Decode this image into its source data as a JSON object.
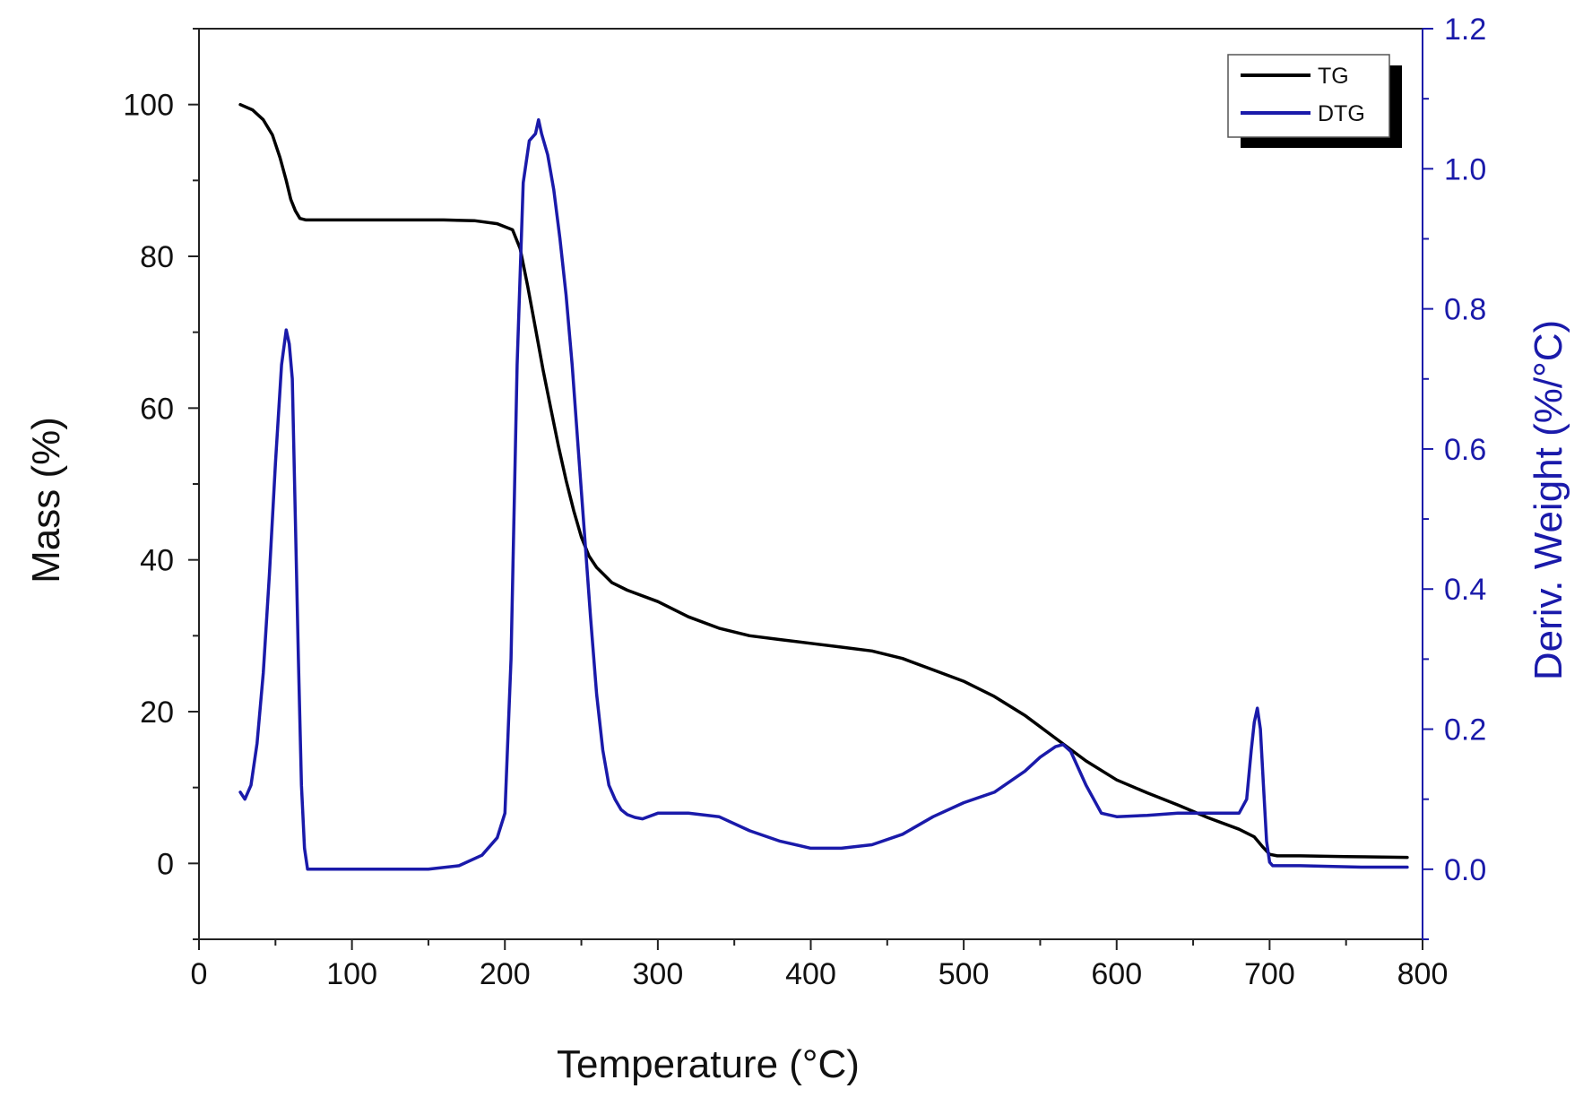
{
  "chart_data": {
    "type": "line",
    "title": "",
    "xlabel": "Temperature (°C)",
    "ylabel": "Mass (%)",
    "y2label": "Deriv. Weight (%/°C)",
    "xlim": [
      0,
      800
    ],
    "ylim": [
      -10,
      110
    ],
    "y2lim": [
      -0.1,
      1.2
    ],
    "x_ticks": [
      0,
      100,
      200,
      300,
      400,
      500,
      600,
      700,
      800
    ],
    "y_ticks": [
      0,
      20,
      40,
      60,
      80,
      100
    ],
    "y2_ticks": [
      0.0,
      0.2,
      0.4,
      0.6,
      0.8,
      1.0,
      1.2
    ],
    "x_tick_labels": [
      "0",
      "100",
      "200",
      "300",
      "400",
      "500",
      "600",
      "700",
      "800"
    ],
    "y_tick_labels": [
      "0",
      "20",
      "40",
      "60",
      "80",
      "100"
    ],
    "y2_tick_labels": [
      "0.0",
      "0.2",
      "0.4",
      "0.6",
      "0.8",
      "1.0",
      "1.2"
    ],
    "grid": false,
    "legend_position": "top-right",
    "legend": [
      "TG",
      "DTG"
    ],
    "series": [
      {
        "name": "TG",
        "axis": "left",
        "color": "#000000",
        "x": [
          27,
          35,
          42,
          48,
          53,
          57,
          60,
          63,
          66,
          70,
          80,
          100,
          120,
          140,
          160,
          180,
          195,
          205,
          210,
          215,
          220,
          225,
          230,
          235,
          240,
          245,
          250,
          255,
          260,
          265,
          270,
          280,
          300,
          320,
          340,
          360,
          380,
          400,
          420,
          440,
          460,
          480,
          500,
          520,
          540,
          560,
          580,
          600,
          620,
          640,
          660,
          680,
          690,
          695,
          700,
          705,
          720,
          750,
          790
        ],
        "values": [
          100,
          99.3,
          98,
          96,
          93,
          90,
          87.5,
          86,
          85,
          84.8,
          84.8,
          84.8,
          84.8,
          84.8,
          84.8,
          84.7,
          84.3,
          83.5,
          81,
          76,
          70.5,
          65,
          60,
          55,
          50.5,
          46.5,
          43,
          40.5,
          39,
          38,
          37,
          36,
          34.5,
          32.5,
          31,
          30,
          29.5,
          29,
          28.5,
          28,
          27,
          25.5,
          24,
          22,
          19.5,
          16.5,
          13.5,
          11,
          9.3,
          7.7,
          6,
          4.5,
          3.5,
          2.3,
          1.2,
          1,
          1,
          0.9,
          0.8
        ]
      },
      {
        "name": "DTG",
        "axis": "right",
        "color": "#1a1aaa",
        "x": [
          27,
          30,
          34,
          38,
          42,
          46,
          50,
          54,
          57,
          59,
          61,
          63,
          65,
          67,
          69,
          71,
          80,
          100,
          120,
          150,
          170,
          185,
          195,
          200,
          204,
          208,
          212,
          216,
          220,
          222,
          224,
          228,
          232,
          236,
          240,
          244,
          248,
          252,
          256,
          260,
          264,
          268,
          272,
          276,
          280,
          285,
          290,
          300,
          320,
          340,
          360,
          380,
          400,
          420,
          440,
          460,
          480,
          500,
          520,
          540,
          550,
          560,
          565,
          570,
          580,
          590,
          600,
          620,
          640,
          660,
          680,
          685,
          688,
          690,
          692,
          694,
          696,
          698,
          700,
          702,
          705,
          720,
          760,
          790
        ],
        "values": [
          0.11,
          0.1,
          0.12,
          0.18,
          0.28,
          0.42,
          0.58,
          0.72,
          0.77,
          0.75,
          0.7,
          0.5,
          0.3,
          0.12,
          0.03,
          0.0,
          0.0,
          0.0,
          0.0,
          0.0,
          0.005,
          0.02,
          0.045,
          0.08,
          0.3,
          0.72,
          0.98,
          1.04,
          1.05,
          1.07,
          1.05,
          1.02,
          0.97,
          0.9,
          0.82,
          0.72,
          0.6,
          0.48,
          0.36,
          0.25,
          0.17,
          0.12,
          0.1,
          0.085,
          0.078,
          0.074,
          0.072,
          0.08,
          0.08,
          0.075,
          0.055,
          0.04,
          0.03,
          0.03,
          0.035,
          0.05,
          0.075,
          0.095,
          0.11,
          0.14,
          0.16,
          0.175,
          0.178,
          0.168,
          0.12,
          0.08,
          0.075,
          0.077,
          0.08,
          0.08,
          0.08,
          0.1,
          0.17,
          0.21,
          0.23,
          0.2,
          0.12,
          0.04,
          0.01,
          0.005,
          0.005,
          0.005,
          0.003,
          0.003
        ]
      }
    ]
  }
}
